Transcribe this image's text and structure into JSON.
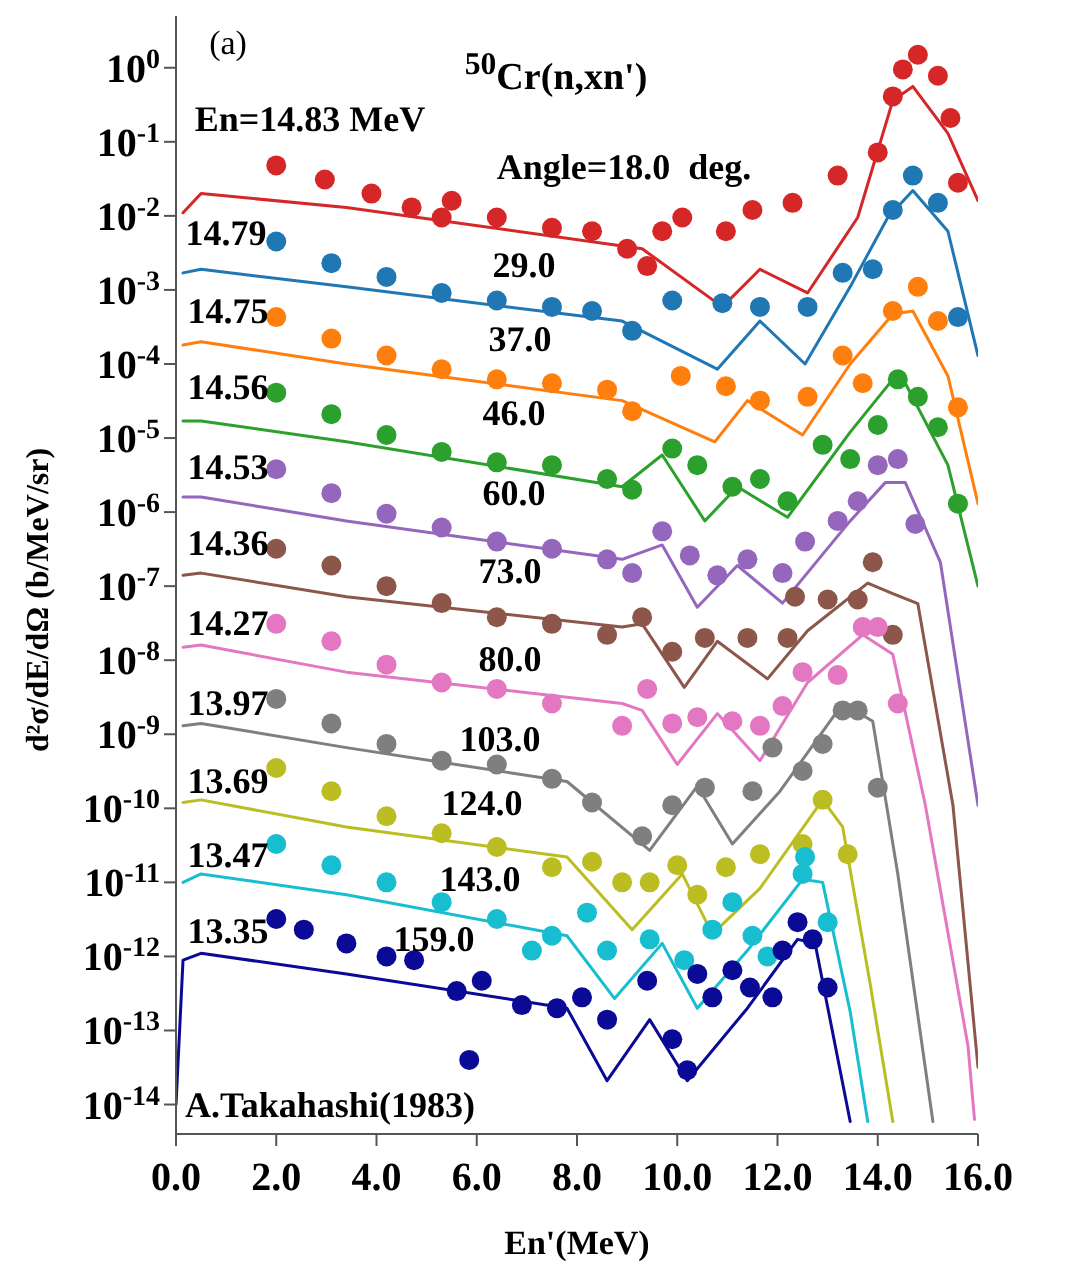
{
  "chart_data": {
    "type": "scatter",
    "title": "$^{50}$Cr(n,xn')",
    "xlabel": "En'(MeV)",
    "ylabel": "d²σ/dE/dΩ (b/MeV/sr)",
    "log": "y",
    "marker": "circle",
    "line_style": "solid",
    "xlim": [
      0,
      16
    ],
    "xticks": [
      {
        "value": 0,
        "label": "0.0"
      },
      {
        "value": 2,
        "label": "2.0"
      },
      {
        "value": 4,
        "label": "4.0"
      },
      {
        "value": 6,
        "label": "6.0"
      },
      {
        "value": 8,
        "label": "8.0"
      },
      {
        "value": 10,
        "label": "10.0"
      },
      {
        "value": 12,
        "label": "12.0"
      },
      {
        "value": 14,
        "label": "14.0"
      },
      {
        "value": 16,
        "label": "16.0"
      }
    ],
    "ylim": [
      4e-15,
      5
    ],
    "yticks": [
      {
        "value": 1e-14,
        "label": "10$^{-14}$"
      },
      {
        "value": 1e-13,
        "label": "10$^{-13}$"
      },
      {
        "value": 1e-12,
        "label": "10$^{-12}$"
      },
      {
        "value": 1e-11,
        "label": "10$^{-11}$"
      },
      {
        "value": 1e-10,
        "label": "10$^{-10}$"
      },
      {
        "value": 1e-09,
        "label": "10$^{-9}$"
      },
      {
        "value": 1e-08,
        "label": "10$^{-8}$"
      },
      {
        "value": 1e-07,
        "label": "10$^{-7}$"
      },
      {
        "value": 1e-06,
        "label": "10$^{-6}$"
      },
      {
        "value": 1e-05,
        "label": "10$^{-5}$"
      },
      {
        "value": 0.0001,
        "label": "10$^{-4}$"
      },
      {
        "value": 0.001,
        "label": "10$^{-3}$"
      },
      {
        "value": 0.01,
        "label": "10$^{-2}$"
      },
      {
        "value": 0.1,
        "label": "10$^{-1}$"
      },
      {
        "value": 1,
        "label": "10$^{0}$"
      }
    ],
    "series": [
      {
        "color": "#d62728",
        "x": [
          2.0,
          2.97,
          3.9,
          4.7,
          5.3,
          5.5,
          6.4,
          7.5,
          8.3,
          9.0,
          9.4,
          9.7,
          10.1,
          10.97,
          11.5,
          12.3,
          13.2,
          14.0,
          14.3,
          14.5,
          14.8,
          15.2,
          15.45,
          15.6
        ],
        "values": [
          0.048,
          0.031,
          0.02,
          0.013,
          0.0095,
          0.016,
          0.0095,
          0.0069,
          0.0062,
          0.0036,
          0.0021,
          0.0062,
          0.0095,
          0.0062,
          0.012,
          0.015,
          0.035,
          0.072,
          0.41,
          0.95,
          1.5,
          0.78,
          0.21,
          0.028
        ]
      },
      {
        "type": "line",
        "marker": "none",
        "color": "#d62728",
        "x": [
          0.14,
          0.5,
          3.4,
          9.3,
          10.9,
          11.65,
          12.6,
          13.6,
          14.3,
          14.7,
          15.4,
          16.0
        ],
        "values": [
          0.011,
          0.02,
          0.013,
          0.0036,
          0.00059,
          0.0019,
          0.00091,
          0.0095,
          0.36,
          0.56,
          0.13,
          0.016
        ]
      },
      {
        "color": "#1f77b4",
        "x": [
          2.0,
          3.1,
          4.2,
          5.3,
          6.4,
          7.5,
          8.3,
          9.1,
          9.9,
          10.9,
          11.65,
          12.6,
          13.3,
          13.9,
          14.3,
          14.7,
          15.2,
          15.6
        ],
        "values": [
          0.0045,
          0.0023,
          0.0015,
          0.00091,
          0.00072,
          0.00059,
          0.00052,
          0.00028,
          0.00072,
          0.00066,
          0.00059,
          0.00059,
          0.0017,
          0.0019,
          0.012,
          0.035,
          0.015,
          0.00043
        ]
      },
      {
        "type": "line",
        "marker": "none",
        "color": "#1f77b4",
        "x": [
          0.14,
          0.5,
          3.4,
          8.9,
          10.8,
          11.65,
          12.55,
          13.45,
          14.2,
          14.7,
          15.4,
          16.0
        ],
        "values": [
          0.0017,
          0.0019,
          0.0011,
          0.00038,
          8.5e-05,
          0.00038,
          0.0001,
          0.0011,
          0.0095,
          0.022,
          0.0062,
          0.00013
        ]
      },
      {
        "color": "#ff7f0e",
        "x": [
          2.0,
          3.1,
          4.2,
          5.3,
          6.4,
          7.5,
          8.6,
          9.1,
          10.07,
          10.97,
          11.65,
          12.6,
          13.3,
          13.7,
          14.3,
          14.8,
          15.2,
          15.6
        ],
        "values": [
          0.00043,
          0.00022,
          0.00013,
          8.5e-05,
          6.2e-05,
          5.5e-05,
          4.5e-05,
          2.3e-05,
          6.9e-05,
          5e-05,
          3.2e-05,
          3.6e-05,
          0.00013,
          5.5e-05,
          0.00052,
          0.0011,
          0.00038,
          2.6e-05
        ]
      },
      {
        "type": "line",
        "marker": "none",
        "color": "#ff7f0e",
        "x": [
          0.14,
          0.5,
          3.4,
          8.9,
          10.75,
          11.4,
          12.5,
          13.45,
          14.3,
          14.7,
          15.4,
          16.0
        ],
        "values": [
          0.00018,
          0.0002,
          0.0001,
          3.2e-05,
          8.9e-06,
          3.2e-05,
          1.1e-05,
          0.0001,
          0.00047,
          0.00052,
          6.9e-05,
          1.3e-06
        ]
      },
      {
        "color": "#2ca02c",
        "x": [
          2.0,
          3.1,
          4.2,
          5.3,
          6.4,
          7.5,
          8.6,
          9.1,
          9.9,
          10.4,
          11.1,
          11.65,
          12.2,
          12.9,
          13.45,
          14.0,
          14.4,
          14.8,
          15.2,
          15.6
        ],
        "values": [
          4.1e-05,
          2.1e-05,
          1.1e-05,
          6.5e-06,
          4.7e-06,
          4.3e-06,
          2.8e-06,
          2e-06,
          7.2e-06,
          4.3e-06,
          2.2e-06,
          2.8e-06,
          1.4e-06,
          8.1e-06,
          5.2e-06,
          1.5e-05,
          6.2e-05,
          3.6e-05,
          1.4e-05,
          1.3e-06
        ]
      },
      {
        "type": "line",
        "marker": "none",
        "color": "#2ca02c",
        "x": [
          0.14,
          0.5,
          3.4,
          8.9,
          9.7,
          10.55,
          11.2,
          12.2,
          13.45,
          14.3,
          14.55,
          15.4,
          16.0
        ],
        "values": [
          1.7e-05,
          1.7e-05,
          8.9e-06,
          2.2e-06,
          5.9e-06,
          7.6e-07,
          2.2e-06,
          8.5e-07,
          1.2e-05,
          6.2e-05,
          5.5e-05,
          4.3e-06,
          1e-07
        ]
      },
      {
        "color": "#9467bd",
        "x": [
          2.0,
          3.1,
          4.2,
          5.3,
          6.4,
          7.5,
          8.6,
          9.1,
          9.7,
          10.25,
          10.8,
          11.4,
          12.1,
          12.55,
          13.2,
          13.6,
          14.0,
          14.4,
          14.75
        ],
        "values": [
          3.8e-06,
          1.8e-06,
          9.5e-07,
          6.2e-07,
          4e-07,
          3.2e-07,
          2.3e-07,
          1.5e-07,
          5.5e-07,
          2.6e-07,
          1.4e-07,
          2.3e-07,
          1.5e-07,
          4e-07,
          7.6e-07,
          1.4e-06,
          4.3e-06,
          5.2e-06,
          6.9e-07
        ]
      },
      {
        "type": "line",
        "marker": "none",
        "color": "#9467bd",
        "x": [
          0.14,
          0.5,
          3.4,
          8.9,
          9.7,
          10.4,
          11.2,
          12.1,
          13.45,
          14.15,
          14.55,
          15.25,
          16.0
        ],
        "values": [
          1.6e-06,
          1.6e-06,
          7.6e-07,
          2.3e-07,
          3.6e-07,
          5.2e-08,
          1.9e-07,
          5.9e-08,
          7.6e-07,
          2.5e-06,
          2.5e-06,
          2.1e-07,
          1.1e-10
        ]
      },
      {
        "color": "#8c564b",
        "x": [
          2.0,
          3.1,
          4.2,
          5.3,
          6.4,
          7.5,
          8.6,
          9.3,
          9.9,
          10.55,
          11.4,
          12.2,
          12.35,
          13.0,
          13.6,
          13.9,
          14.3
        ],
        "values": [
          3.2e-07,
          1.9e-07,
          1e-07,
          5.9e-08,
          3.8e-08,
          3.1e-08,
          2.2e-08,
          3.8e-08,
          1.3e-08,
          2e-08,
          2e-08,
          2e-08,
          7.2e-08,
          6.6e-08,
          6.6e-08,
          2.1e-07,
          2.2e-08
        ]
      },
      {
        "type": "line",
        "marker": "none",
        "color": "#8c564b",
        "x": [
          0.14,
          0.5,
          3.4,
          8.9,
          9.3,
          10.14,
          10.8,
          11.8,
          12.6,
          13.8,
          14.3,
          14.8,
          15.5,
          16.0
        ],
        "values": [
          1.4e-07,
          1.5e-07,
          7.2e-08,
          2.8e-08,
          3.1e-08,
          4.3e-09,
          1.8e-08,
          5.6e-09,
          2.5e-08,
          1.1e-07,
          7.9e-08,
          5.8e-08,
          1.1e-10,
          3.2e-14
        ]
      },
      {
        "color": "#e377c2",
        "x": [
          2.0,
          3.1,
          4.2,
          5.3,
          6.4,
          7.5,
          8.9,
          9.4,
          9.9,
          10.4,
          11.1,
          11.65,
          12.1,
          12.5,
          13.2,
          13.7,
          14.0,
          14.4
        ],
        "values": [
          3.1e-08,
          1.8e-08,
          8.7e-09,
          5e-09,
          4.1e-09,
          2.6e-09,
          1.3e-09,
          4.1e-09,
          1.4e-09,
          1.7e-09,
          1.5e-09,
          1.3e-09,
          2.4e-09,
          6.9e-09,
          6.3e-09,
          2.8e-08,
          2.8e-08,
          2.6e-09
        ]
      },
      {
        "type": "line",
        "marker": "none",
        "color": "#e377c2",
        "x": [
          0.14,
          0.5,
          3.4,
          8.9,
          9.3,
          10.0,
          10.8,
          11.65,
          12.6,
          13.7,
          14.3,
          14.95,
          15.8,
          15.93
        ],
        "values": [
          1.5e-08,
          1.6e-08,
          6.9e-09,
          2.6e-09,
          2.1e-09,
          3.9e-10,
          1.9e-09,
          4.4e-10,
          5e-09,
          2.2e-08,
          1.2e-08,
          1.1e-10,
          6.2e-14,
          6.3e-15
        ]
      },
      {
        "color": "#7f7f7f",
        "x": [
          2.0,
          3.1,
          4.2,
          5.3,
          6.4,
          7.5,
          8.3,
          9.3,
          9.9,
          10.55,
          11.5,
          11.9,
          12.5,
          12.9,
          13.3,
          13.6,
          14.0
        ],
        "values": [
          3e-09,
          1.4e-09,
          7.4e-10,
          4.4e-10,
          3.9e-10,
          2.5e-10,
          1.2e-10,
          4.2e-11,
          1.1e-10,
          1.9e-10,
          1.7e-10,
          6.6e-10,
          3.2e-10,
          7.4e-10,
          2.1e-09,
          2.1e-09,
          1.9e-10
        ]
      },
      {
        "type": "line",
        "marker": "none",
        "color": "#7f7f7f",
        "x": [
          0.14,
          0.5,
          3.4,
          7.8,
          9.45,
          10.4,
          11.1,
          12.05,
          13.3,
          13.9,
          14.4,
          15.1
        ],
        "values": [
          1.3e-09,
          1.4e-09,
          6.6e-10,
          2.3e-10,
          2.7e-11,
          2e-10,
          3.3e-11,
          1.7e-10,
          2.6e-09,
          1.5e-09,
          1.3e-11,
          5.9e-15
        ]
      },
      {
        "color": "#bcbd22",
        "x": [
          2.0,
          3.1,
          4.2,
          5.3,
          6.4,
          7.5,
          8.3,
          8.9,
          9.45,
          10.0,
          10.4,
          10.97,
          11.65,
          12.5,
          12.9,
          13.4
        ],
        "values": [
          3.5e-10,
          1.7e-10,
          7.8e-11,
          4.6e-11,
          3e-11,
          1.6e-11,
          1.9e-11,
          1e-11,
          1e-11,
          1.7e-11,
          6.8e-12,
          1.6e-11,
          2.4e-11,
          3.3e-11,
          1.3e-10,
          2.4e-11
        ]
      },
      {
        "type": "line",
        "marker": "none",
        "color": "#bcbd22",
        "x": [
          0.14,
          0.5,
          3.4,
          7.8,
          9.1,
          10.1,
          10.7,
          11.65,
          12.9,
          13.3,
          13.85,
          14.3
        ],
        "values": [
          1.2e-10,
          1.3e-10,
          5.6e-11,
          2.2e-11,
          2.3e-12,
          1.3e-11,
          2e-12,
          8.3e-12,
          1.3e-10,
          5.6e-11,
          4.2e-13,
          5.9e-15
        ]
      },
      {
        "color": "#17becf",
        "x": [
          2.0,
          3.1,
          4.2,
          5.3,
          6.4,
          7.1,
          7.5,
          8.2,
          8.6,
          9.45,
          10.14,
          10.7,
          11.1,
          11.5,
          11.8,
          12.5,
          12.55,
          13.0
        ],
        "values": [
          3.3e-11,
          1.7e-11,
          1e-11,
          5.4e-12,
          3.2e-12,
          1.2e-12,
          1.9e-12,
          3.9e-12,
          1.2e-12,
          1.7e-12,
          8.9e-13,
          2.3e-12,
          5.4e-12,
          1.9e-12,
          1e-12,
          1.3e-11,
          2.2e-11,
          2.9e-12
        ]
      },
      {
        "type": "line",
        "marker": "none",
        "color": "#17becf",
        "x": [
          0.14,
          0.5,
          3.4,
          7.8,
          8.75,
          9.7,
          10.4,
          11.4,
          12.5,
          12.9,
          13.45,
          13.8
        ],
        "values": [
          1e-11,
          1.3e-11,
          6.8e-12,
          1.9e-12,
          2.7e-13,
          1.5e-12,
          2e-13,
          1.2e-12,
          1.1e-11,
          1e-11,
          1.8e-13,
          5.9e-15
        ]
      },
      {
        "color": "#0a0a96",
        "x": [
          2.0,
          2.55,
          3.4,
          4.2,
          4.75,
          5.6,
          5.85,
          6.1,
          6.9,
          7.6,
          8.1,
          8.6,
          9.4,
          9.9,
          10.2,
          10.4,
          10.7,
          11.1,
          11.45,
          11.9,
          12.1,
          12.4,
          12.7,
          13.0
        ],
        "values": [
          3.2e-12,
          2.3e-12,
          1.5e-12,
          1e-12,
          8.9e-13,
          3.4e-13,
          4e-14,
          4.7e-13,
          2.2e-13,
          2e-13,
          2.8e-13,
          1.4e-13,
          4.7e-13,
          7.6e-14,
          2.9e-14,
          5.8e-13,
          2.8e-13,
          6.5e-13,
          3.8e-13,
          2.8e-13,
          1.2e-12,
          2.9e-12,
          1.7e-12,
          3.8e-13
        ]
      },
      {
        "type": "line",
        "marker": "none",
        "color": "#0a0a96",
        "x": [
          0,
          0.14,
          0.5,
          3.4,
          7.8,
          8.6,
          9.45,
          10.2,
          11.4,
          12.4,
          12.75,
          13.45
        ],
        "values": [
          1e-14,
          8.9e-13,
          1.1e-12,
          5.8e-13,
          2e-13,
          2.1e-14,
          1.4e-13,
          2.1e-14,
          2e-13,
          1.7e-12,
          1.5e-12,
          5.9e-15
        ]
      }
    ],
    "annotations": [
      "(a)",
      "En=14.83 MeV",
      "Angle=18.0  deg.",
      "14.79",
      "29.0",
      "14.75",
      "37.0",
      "14.56",
      "46.0",
      "14.53",
      "60.0",
      "14.36",
      "73.0",
      "14.27",
      "80.0",
      "13.97",
      "103.0",
      "13.69",
      "124.0",
      "13.47",
      "143.0",
      "13.35",
      "159.0",
      "A.Takahashi(1983)"
    ]
  }
}
